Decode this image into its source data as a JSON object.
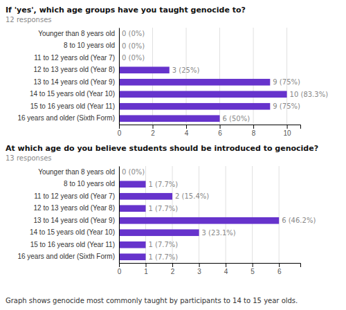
{
  "chart_data": [
    {
      "type": "bar",
      "orientation": "horizontal",
      "title": "If 'yes', which age groups have you taught genocide to?",
      "subtitle": "12 responses",
      "categories": [
        "Younger than 8 years old",
        "8 to 10 years old",
        "11 to 12 years old (Year 7)",
        "12 to 13 years old (Year 8)",
        "13 to 14 years old (Year 9)",
        "14 to 15 years old (Year 10)",
        "15 to 16 years old (Year 11)",
        "16 years and older (Sixth Form)"
      ],
      "values": [
        0,
        0,
        0,
        3,
        9,
        10,
        9,
        6
      ],
      "value_labels": [
        "0 (0%)",
        "0 (0%)",
        "0 (0%)",
        "3 (25%)",
        "9 (75%)",
        "10 (83.3%)",
        "9 (75%)",
        "6 (50%)"
      ],
      "data_labels": true,
      "color": "#6633cc",
      "xlim": [
        0,
        10.8
      ],
      "xticks": [
        0,
        2,
        4,
        6,
        8,
        10
      ],
      "grid": true
    },
    {
      "type": "bar",
      "orientation": "horizontal",
      "title": "At which age do you believe students should be introduced to genocide?",
      "subtitle": "13 responses",
      "categories": [
        "Younger than 8 years old",
        "8 to 10 years old",
        "11 to 12 years old (Year 7)",
        "12 to 13 years old (Year 8)",
        "13 to 14 years old (Year 9)",
        "14 to 15 years old (Year 10)",
        "15 to 16 years old (Year 11)",
        "16 years and older (Sixth Form)"
      ],
      "values": [
        0,
        1,
        2,
        1,
        6,
        3,
        1,
        1
      ],
      "value_labels": [
        "0 (0%)",
        "1 (7.7%)",
        "2 (15.4%)",
        "1 (7.7%)",
        "6 (46.2%)",
        "3 (23.1%)",
        "1 (7.7%)",
        "1 (7.7%)"
      ],
      "data_labels": true,
      "color": "#6633cc",
      "xlim": [
        0,
        6.8
      ],
      "xticks": [
        0,
        1,
        2,
        3,
        4,
        5,
        6
      ],
      "grid": true,
      "annotations": [
        "Graph shows genocide most commonly taught by participants to 14 to 15 year olds."
      ]
    }
  ]
}
